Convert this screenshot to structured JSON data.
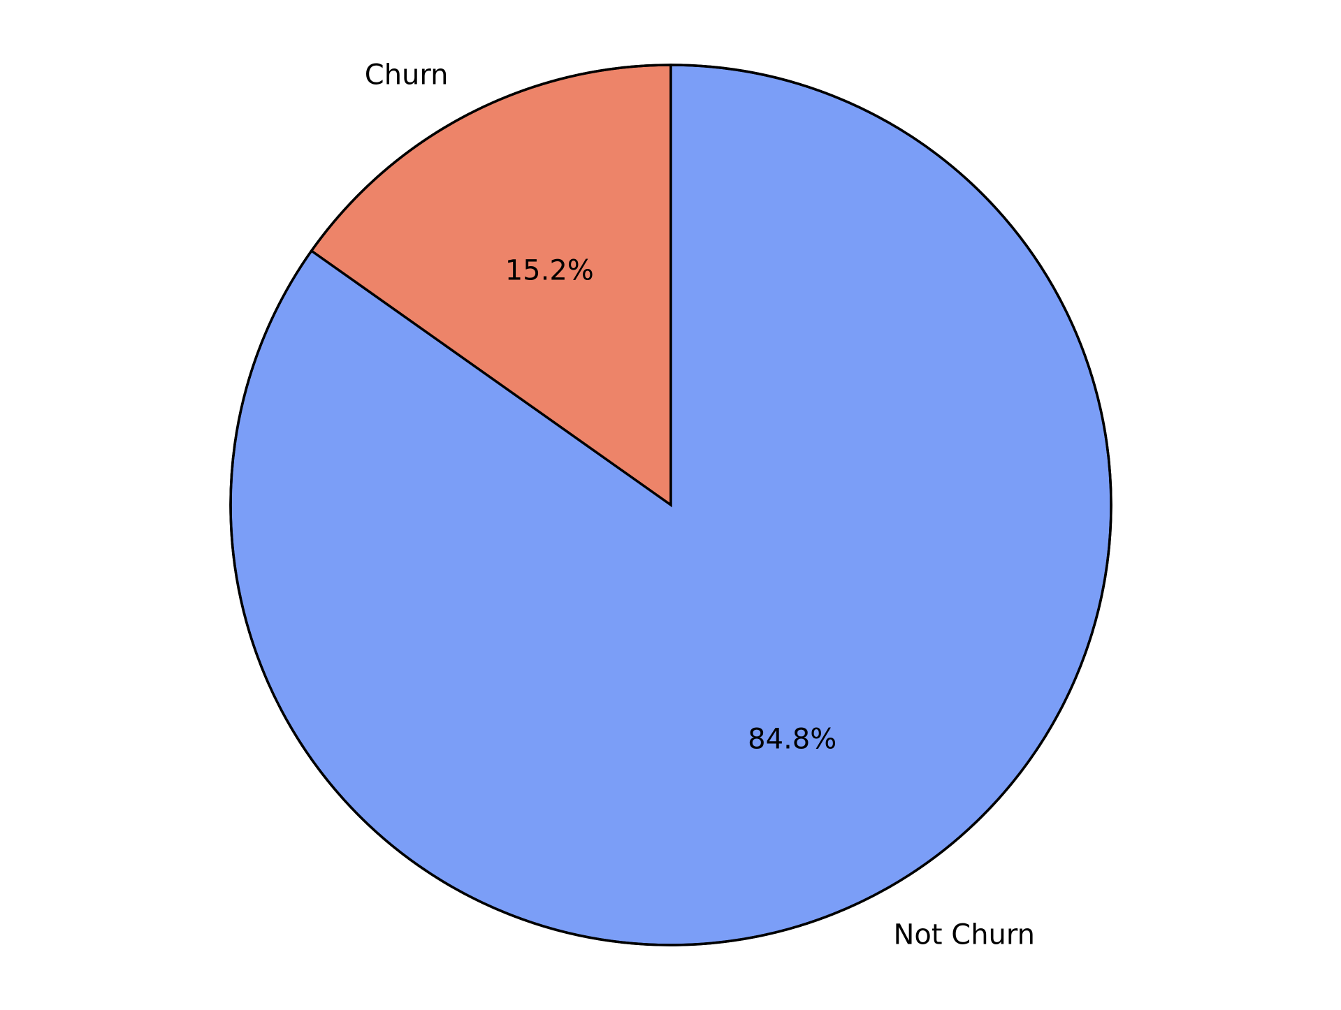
{
  "chart_data": {
    "type": "pie",
    "title": "",
    "startangle_deg": 90,
    "direction": "counterclockwise",
    "slices": [
      {
        "label": "Churn",
        "value": 15.2,
        "pct_label": "15.2%",
        "color": "#ed8469"
      },
      {
        "label": "Not Churn",
        "value": 84.8,
        "pct_label": "84.8%",
        "color": "#7b9ef7"
      }
    ],
    "edge_color": "#000000",
    "legend": "none"
  }
}
